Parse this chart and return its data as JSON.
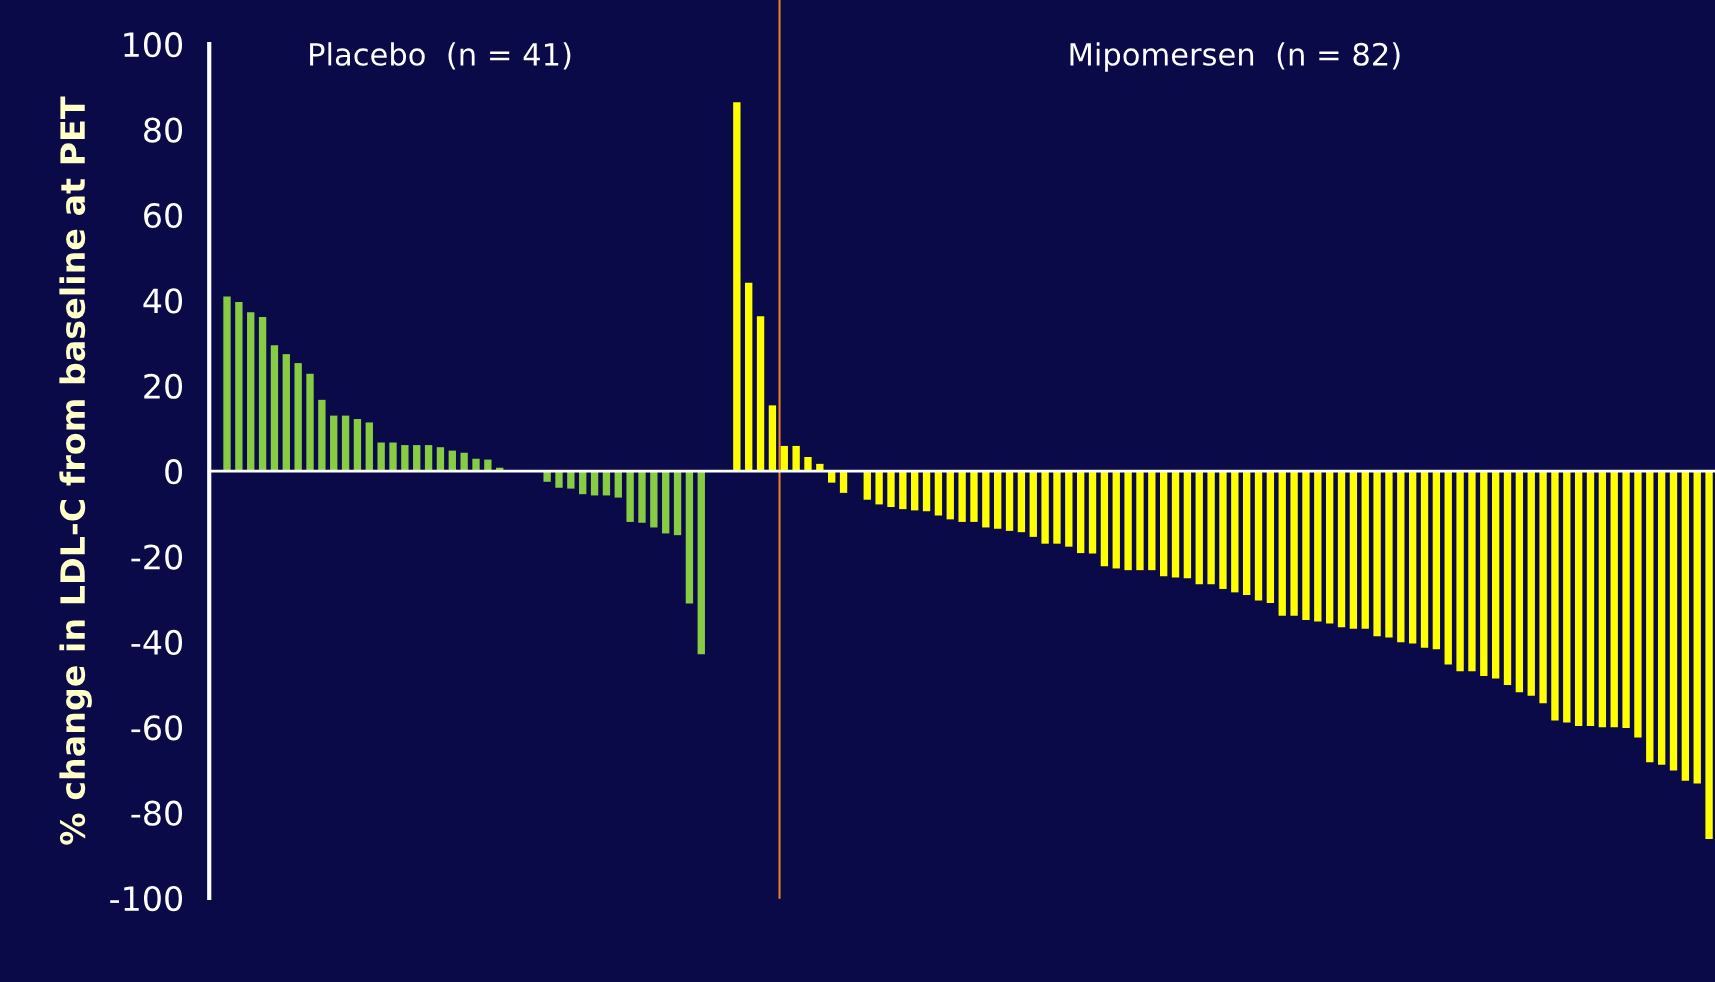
{
  "chart_data": {
    "type": "bar",
    "ylabel": "% change in LDL-C from baseline at PET",
    "annotations": [
      "Placebo  (n = 41)",
      "Mipomersen  (n = 82)"
    ],
    "categories": [
      null,
      null,
      null,
      null,
      null,
      null,
      null,
      null,
      null,
      null,
      null,
      null,
      null,
      null,
      null,
      null,
      null,
      null,
      null,
      null,
      null,
      null,
      null,
      null,
      null,
      null,
      null,
      null,
      null,
      null,
      null,
      null,
      null,
      null,
      null,
      null,
      null,
      null,
      null,
      null,
      null,
      null,
      null,
      null,
      null,
      null,
      null,
      null,
      null,
      null,
      null,
      null,
      null,
      null,
      null,
      null,
      null,
      null,
      null,
      null,
      null,
      null,
      null,
      null,
      null,
      null,
      null,
      null,
      null,
      null,
      null,
      null,
      null,
      null,
      null,
      null,
      null,
      null,
      null,
      null,
      null,
      null,
      null,
      null,
      null,
      null,
      null,
      null,
      null,
      null,
      null,
      null,
      null,
      null,
      null,
      null,
      null,
      null,
      null,
      null,
      null,
      null,
      null,
      null,
      null,
      null,
      null,
      null,
      null,
      null,
      null,
      null,
      null,
      null,
      null,
      null,
      null,
      null,
      null,
      null,
      null,
      null,
      null,
      null,
      null,
      null,
      null
    ],
    "series": [
      {
        "color": "#88cc44",
        "values": [
          null,
          40.9,
          39.6,
          37.2,
          36.1,
          29.5,
          27.4,
          25.3,
          22.8,
          16.7,
          13,
          13,
          12.2,
          11.4,
          6.7,
          6.7,
          6.1,
          6.1,
          6.1,
          5.6,
          4.8,
          4.3,
          2.9,
          2.7,
          0.8,
          0.2,
          0.2,
          null,
          -2.5,
          -3.9,
          -4.1,
          -5.4,
          -5.7,
          -5.7,
          -6.2,
          -11.9,
          -12.1,
          -13.2,
          -14.6,
          -15,
          -31,
          -42.9,
          null,
          null,
          null,
          null,
          null,
          null,
          null,
          null,
          null,
          null,
          null,
          null,
          null,
          null,
          null,
          null,
          null,
          null,
          null,
          null,
          null,
          null,
          null,
          null,
          null,
          null,
          null,
          null,
          null,
          null,
          null,
          null,
          null,
          null,
          null,
          null,
          null,
          null,
          null,
          null,
          null,
          null,
          null,
          null,
          null,
          null,
          null,
          null,
          null,
          null,
          null,
          null,
          null,
          null,
          null,
          null,
          null,
          null,
          null,
          null,
          null,
          null,
          null,
          null,
          null,
          null,
          null,
          null,
          null,
          null,
          null,
          null,
          null,
          null,
          null,
          null,
          null,
          null,
          null,
          null,
          null,
          null,
          null,
          null,
          null
        ]
      },
      {
        "color": "#ffff00",
        "values": [
          null,
          null,
          null,
          null,
          null,
          null,
          null,
          null,
          null,
          null,
          null,
          null,
          null,
          null,
          null,
          null,
          null,
          null,
          null,
          null,
          null,
          null,
          null,
          null,
          null,
          null,
          null,
          null,
          null,
          null,
          null,
          null,
          null,
          null,
          null,
          null,
          null,
          null,
          null,
          null,
          null,
          null,
          null,
          null,
          86.4,
          44.1,
          36.3,
          15.4,
          5.9,
          5.9,
          3.3,
          1.7,
          -2.7,
          -5.1,
          null,
          -6.7,
          -7.8,
          -8.4,
          -8.9,
          -9.2,
          -9.4,
          -10.4,
          -11.3,
          -11.9,
          -11.9,
          -13.2,
          -13.5,
          -14,
          -14.3,
          -15.4,
          -17,
          -17,
          -17.7,
          -19.2,
          -19.3,
          -22.3,
          -22.8,
          -23.2,
          -23.2,
          -23.2,
          -24.6,
          -24.9,
          -25.1,
          -26.5,
          -26.5,
          -27.6,
          -28.4,
          -29,
          -30.3,
          -30.9,
          -33.9,
          -33.9,
          -34.9,
          -35.2,
          -35.7,
          -36.6,
          -36.9,
          -36.9,
          -38.7,
          -39,
          -40.1,
          -40.4,
          -41.4,
          -41.7,
          -45.3,
          -46.9,
          -46.9,
          -48,
          -48.6,
          -50.1,
          -51.8,
          -52.6,
          -54.4,
          -58.4,
          -58.9,
          -59.7,
          -59.7,
          -60,
          -60,
          -60.2,
          -62.4,
          -68.2,
          -68.8,
          -70.1,
          -72.5,
          -73.2,
          -86.2
        ]
      }
    ],
    "ylim": [
      -100,
      100
    ],
    "yticks": [
      -100,
      -80,
      -60,
      -40,
      -20,
      0,
      20,
      40,
      60,
      80,
      100
    ]
  }
}
